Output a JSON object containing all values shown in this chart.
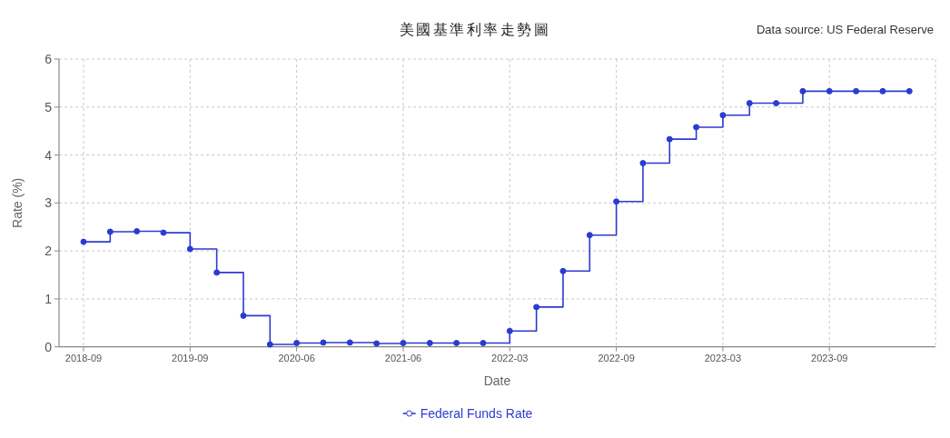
{
  "chart_data": {
    "type": "step",
    "title": "美國基準利率走勢圖",
    "xlabel": "Date",
    "ylabel": "Rate (%)",
    "annotations": [
      "Data source: US Federal Reserve"
    ],
    "categories": [
      "2018-09",
      null,
      null,
      null,
      "2019-09",
      null,
      null,
      null,
      "2020-06",
      null,
      null,
      null,
      "2021-06",
      null,
      null,
      null,
      "2022-03",
      null,
      null,
      null,
      "2022-09",
      null,
      null,
      null,
      "2023-03",
      null,
      null,
      null,
      "2023-09",
      null,
      null,
      null
    ],
    "series": [
      {
        "name": "Federal Funds Rate",
        "color": "#2b3bd1",
        "values": [
          2.19,
          2.4,
          2.41,
          2.38,
          2.04,
          1.55,
          0.65,
          0.05,
          0.08,
          0.09,
          0.09,
          0.07,
          0.08,
          0.08,
          0.08,
          0.08,
          0.33,
          0.83,
          1.58,
          2.33,
          3.03,
          3.83,
          4.33,
          4.58,
          4.83,
          5.08,
          5.08,
          5.33,
          5.33,
          5.33,
          5.33,
          5.33
        ]
      }
    ],
    "ylim": [
      0,
      6
    ],
    "yticks": [
      0,
      1,
      2,
      3,
      4,
      5,
      6
    ],
    "grid": true,
    "legend": "bottom",
    "marker": "circle",
    "line_style": "solid"
  }
}
